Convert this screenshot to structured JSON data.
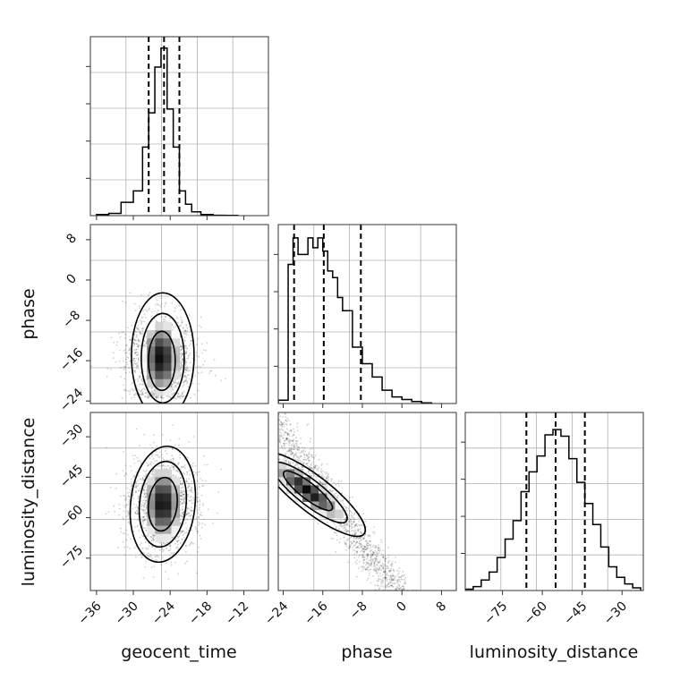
{
  "chart_data": {
    "type": "corner",
    "parameters": [
      "geocent_time",
      "phase",
      "luminosity_distance"
    ],
    "grid": true,
    "panels": [
      {
        "id": "hist-geocent_time",
        "type": "histogram",
        "x_param": "geocent_time",
        "xlim": [
          -37,
          -8
        ],
        "bin_edges": [
          -36,
          -34,
          -32,
          -30,
          -28.5,
          -27.5,
          -26.5,
          -25.5,
          -24.5,
          -23.5,
          -22.5,
          -21.5,
          -20.5,
          -19,
          -17,
          -15,
          -13
        ],
        "counts": [
          0.3,
          0.6,
          3.5,
          6.5,
          18,
          27,
          39,
          44,
          28,
          18,
          6.5,
          3,
          1,
          0.3,
          0.1,
          0.05
        ],
        "ylim": [
          0,
          47
        ],
        "quantile_lines": [
          -27.5,
          -25.0,
          -22.5
        ]
      },
      {
        "id": "hist-phase",
        "type": "histogram",
        "x_param": "phase",
        "xlim": [
          -25,
          11
        ],
        "bin_edges": [
          -25,
          -23,
          -22,
          -21,
          -20,
          -19,
          -18,
          -17,
          -16,
          -15,
          -14,
          -13,
          -12,
          -10,
          -8,
          -6,
          -4,
          -2,
          0,
          2,
          4,
          6
        ],
        "counts": [
          0.5,
          21,
          25,
          22.5,
          22.5,
          25,
          23.5,
          25,
          23,
          20,
          19,
          16,
          14,
          8.5,
          6,
          4,
          2,
          1,
          0.6,
          0.3,
          0.1
        ],
        "ylim": [
          0,
          27
        ],
        "quantile_lines": [
          -21.8,
          -15.8,
          -8.3
        ]
      },
      {
        "id": "hist-luminosity_distance",
        "type": "histogram",
        "x_param": "luminosity_distance",
        "xlim": [
          -89,
          -22
        ],
        "bin_edges": [
          -89,
          -86,
          -83,
          -80,
          -77,
          -74,
          -71,
          -68,
          -65,
          -62,
          -59,
          -56,
          -53,
          -50,
          -47,
          -44,
          -41,
          -38,
          -35,
          -32,
          -29,
          -26,
          -23
        ],
        "counts": [
          1,
          3,
          8,
          14,
          25,
          39,
          53,
          75,
          90,
          102,
          118,
          122,
          117,
          100,
          82,
          66,
          50,
          33,
          18,
          10,
          5,
          2
        ],
        "ylim": [
          0,
          135
        ],
        "quantile_lines": [
          -66,
          -55,
          -44
        ]
      },
      {
        "id": "density-phase-vs-geocent_time",
        "type": "density_2d",
        "x_param": "geocent_time",
        "y_param": "phase",
        "xlim": [
          -37,
          -8
        ],
        "ylim": [
          -24.5,
          11
        ],
        "peak": [
          -25.5,
          -15.5
        ],
        "spread": [
          2.8,
          4.5
        ]
      },
      {
        "id": "density-luminosity_distance-vs-geocent_time",
        "type": "density_2d",
        "x_param": "geocent_time",
        "y_param": "luminosity_distance",
        "xlim": [
          -37,
          -8
        ],
        "ylim": [
          -87,
          -21
        ],
        "peak": [
          -25.2,
          -55
        ],
        "spread": [
          2.8,
          9
        ]
      },
      {
        "id": "density-luminosity_distance-vs-phase",
        "type": "density_2d",
        "x_param": "phase",
        "y_param": "luminosity_distance",
        "xlim": [
          -25,
          11
        ],
        "ylim": [
          -87,
          -21
        ],
        "peak": [
          -19,
          -50
        ],
        "trend": "negative correlation"
      }
    ],
    "ticks": {
      "geocent_time": [
        "−36",
        "−30",
        "−24",
        "−18",
        "−12"
      ],
      "phase": [
        "−24",
        "−16",
        "−8",
        "0",
        "8"
      ],
      "luminosity_distance": [
        "−75",
        "−60",
        "−45",
        "−30"
      ]
    },
    "xlabels": [
      "geocent_time",
      "phase",
      "luminosity_distance"
    ],
    "ylabels": [
      "phase",
      "luminosity_distance"
    ]
  }
}
